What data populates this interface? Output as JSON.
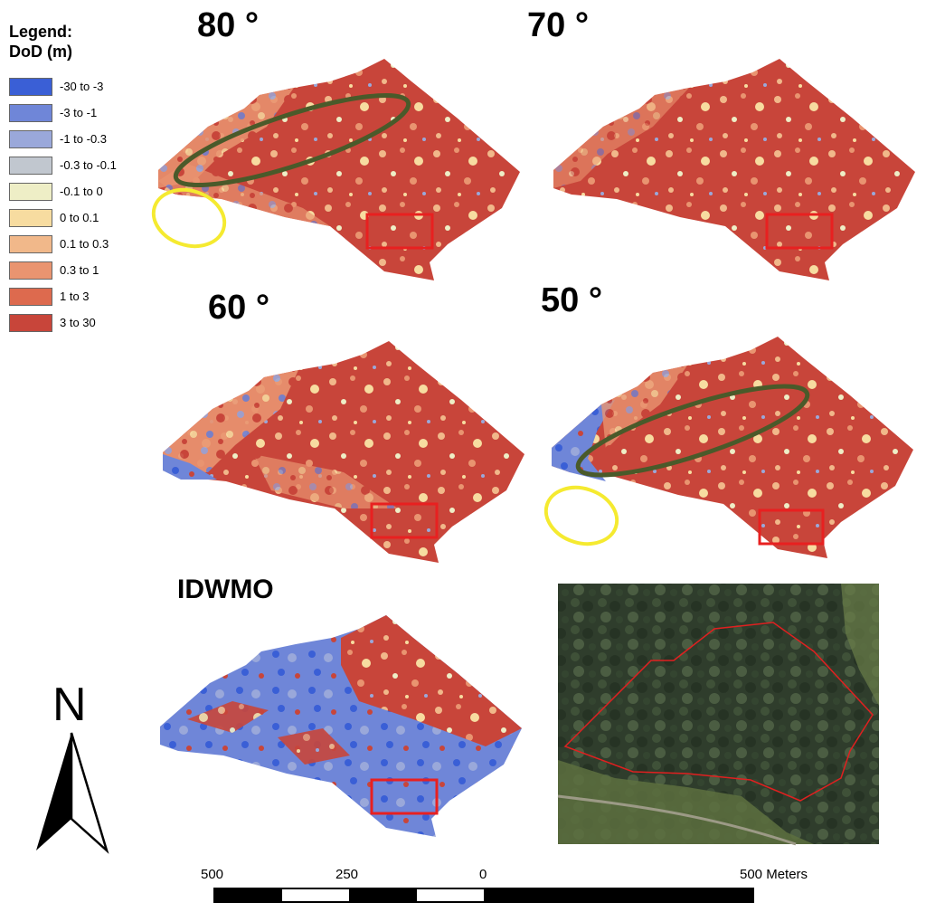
{
  "legend": {
    "title_line1": "Legend:",
    "title_line2": "DoD (m)",
    "items": [
      {
        "label": "-30 to -3",
        "color": "#3a5fd6"
      },
      {
        "label": "-3 to -1",
        "color": "#6f86d8"
      },
      {
        "label": "-1 to -0.3",
        "color": "#9aa8da"
      },
      {
        "label": "-0.3 to -0.1",
        "color": "#c1c7cf"
      },
      {
        "label": "-0.1 to 0",
        "color": "#eeeec6"
      },
      {
        "label": "0 to 0.1",
        "color": "#f7dca0"
      },
      {
        "label": "0.1 to 0.3",
        "color": "#f1b88a"
      },
      {
        "label": "0.3 to 1",
        "color": "#e99470"
      },
      {
        "label": "1 to 3",
        "color": "#dd6a4e"
      },
      {
        "label": "3 to 30",
        "color": "#c8453a"
      }
    ]
  },
  "panels": [
    {
      "title": "80 °"
    },
    {
      "title": "70 °"
    },
    {
      "title": "60 °"
    },
    {
      "title": "50 °"
    },
    {
      "title": "IDWMO"
    }
  ],
  "scalebar": {
    "labels": [
      "500",
      "250",
      "0",
      "500 Meters"
    ]
  },
  "north_arrow": {
    "label": "N"
  }
}
